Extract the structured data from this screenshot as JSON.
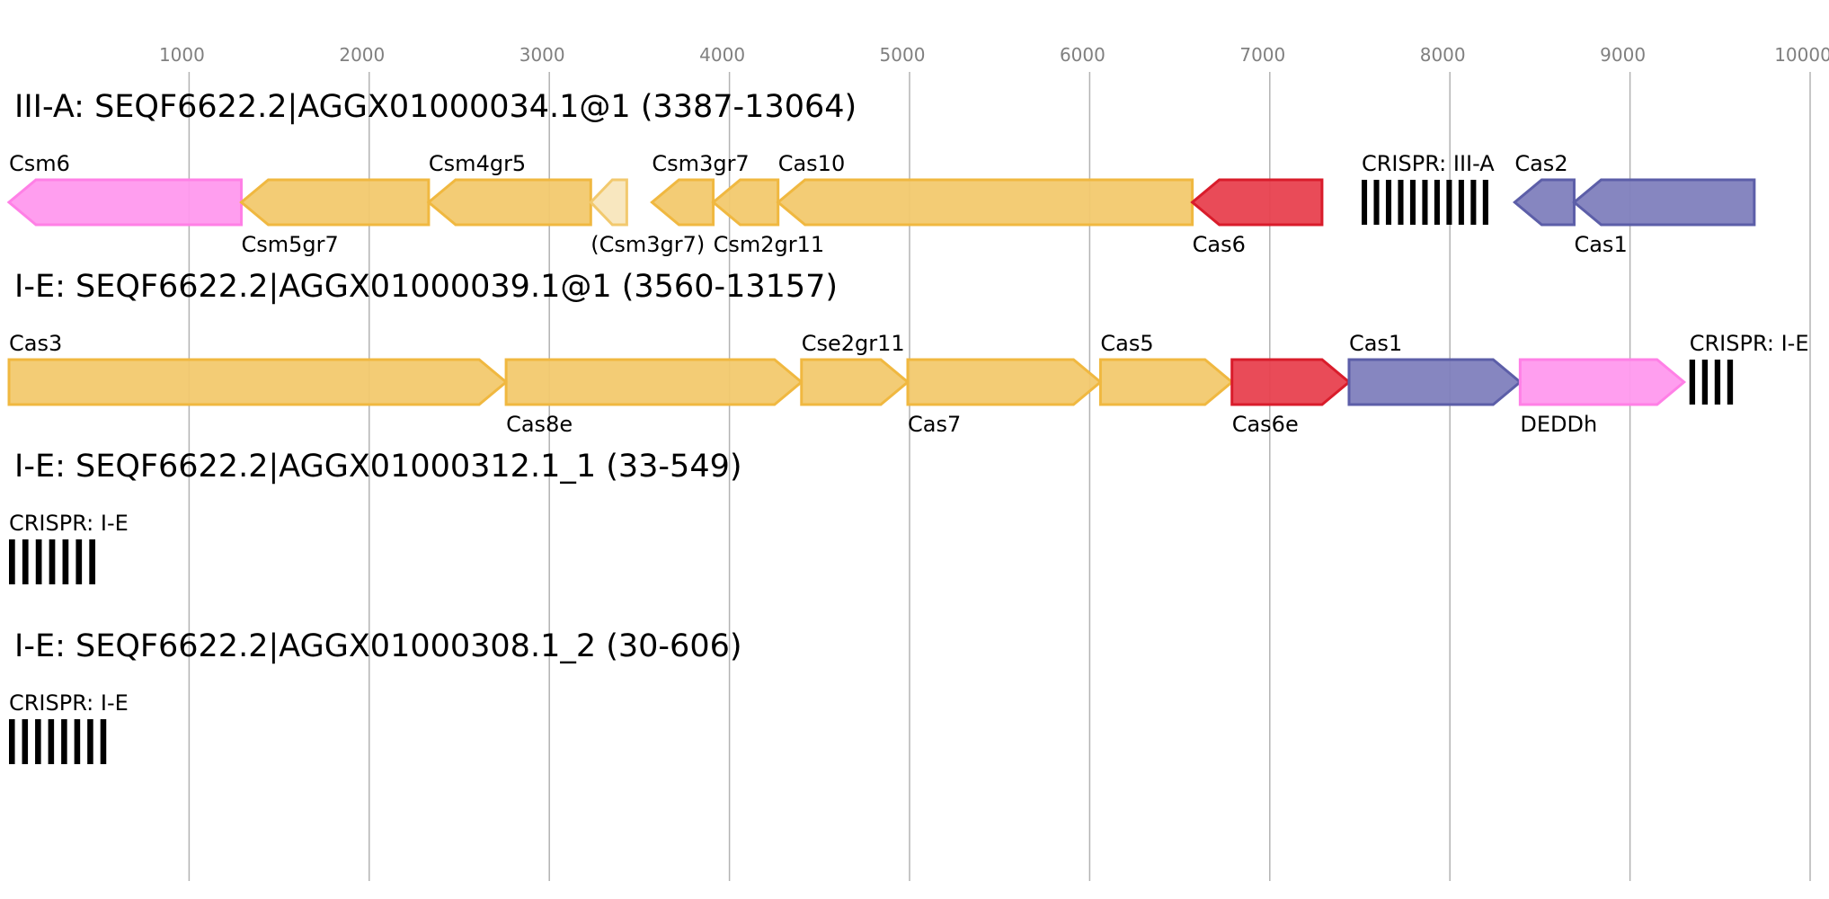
{
  "axis": {
    "ticks": [
      "1000",
      "2000",
      "3000",
      "4000",
      "5000",
      "6000",
      "7000",
      "8000",
      "9000",
      "10000"
    ],
    "tick_color": "#808080"
  },
  "colors": {
    "yellow_fill": "#f2c96e",
    "yellow_stroke": "#f0b840",
    "pale_fill": "#f8e6bc",
    "pale_stroke": "#f2c96e",
    "red_fill": "#e8414f",
    "red_stroke": "#d91c2b",
    "purple_fill": "#7f80bd",
    "purple_stroke": "#5c5ea8",
    "pink_fill": "#ff99ee",
    "pink_stroke": "#ff80e6",
    "crispr_bar": "#000000"
  },
  "loci": [
    {
      "title": "III-A: SEQF6622.2|AGGX01000034.1@1 (3387-13064)",
      "features": [
        {
          "label": "Csm6",
          "start": 0,
          "end": 1290,
          "strand": -1,
          "color": "pink",
          "label_pos": "above"
        },
        {
          "label": "Csm5gr7",
          "start": 1290,
          "end": 2330,
          "strand": -1,
          "color": "yellow",
          "label_pos": "below"
        },
        {
          "label": "Csm4gr5",
          "start": 2330,
          "end": 3230,
          "strand": -1,
          "color": "yellow",
          "label_pos": "above"
        },
        {
          "label": "(Csm3gr7)",
          "start": 3230,
          "end": 3430,
          "strand": -1,
          "color": "pale",
          "label_pos": "below"
        },
        {
          "label": "Csm3gr7",
          "start": 3570,
          "end": 3910,
          "strand": -1,
          "color": "yellow",
          "label_pos": "above"
        },
        {
          "label": "Csm2gr11",
          "start": 3910,
          "end": 4270,
          "strand": -1,
          "color": "yellow",
          "label_pos": "below"
        },
        {
          "label": "Cas10",
          "start": 4270,
          "end": 6570,
          "strand": -1,
          "color": "yellow",
          "label_pos": "above"
        },
        {
          "label": "Cas6",
          "start": 6570,
          "end": 7290,
          "strand": -1,
          "color": "red",
          "label_pos": "below"
        },
        {
          "label": "CRISPR: III-A",
          "start": 7510,
          "end": 8250,
          "type": "crispr",
          "label_pos": "above"
        },
        {
          "label": "Cas2",
          "start": 8360,
          "end": 8690,
          "strand": -1,
          "color": "purple",
          "label_pos": "above"
        },
        {
          "label": "Cas1",
          "start": 8690,
          "end": 9690,
          "strand": -1,
          "color": "purple",
          "label_pos": "below"
        }
      ]
    },
    {
      "title": "I-E: SEQF6622.2|AGGX01000039.1@1 (3560-13157)",
      "features": [
        {
          "label": "Cas3",
          "start": 0,
          "end": 2760,
          "strand": 1,
          "color": "yellow",
          "label_pos": "above"
        },
        {
          "label": "Cas8e",
          "start": 2760,
          "end": 4400,
          "strand": 1,
          "color": "yellow",
          "label_pos": "below"
        },
        {
          "label": "Cse2gr11",
          "start": 4400,
          "end": 4990,
          "strand": 1,
          "color": "yellow",
          "label_pos": "above"
        },
        {
          "label": "Cas7",
          "start": 4990,
          "end": 6060,
          "strand": 1,
          "color": "yellow",
          "label_pos": "below"
        },
        {
          "label": "Cas5",
          "start": 6060,
          "end": 6790,
          "strand": 1,
          "color": "yellow",
          "label_pos": "above"
        },
        {
          "label": "Cas6e",
          "start": 6790,
          "end": 7440,
          "strand": 1,
          "color": "red",
          "label_pos": "below"
        },
        {
          "label": "Cas1",
          "start": 7440,
          "end": 8390,
          "strand": 1,
          "color": "purple",
          "label_pos": "above"
        },
        {
          "label": "DEDDh",
          "start": 8390,
          "end": 9300,
          "strand": 1,
          "color": "pink",
          "label_pos": "below"
        },
        {
          "label": "CRISPR: I-E",
          "start": 9330,
          "end": 9610,
          "type": "crispr",
          "label_pos": "above"
        }
      ]
    },
    {
      "title": "I-E: SEQF6622.2|AGGX01000312.1_1 (33-549)",
      "features": [
        {
          "label": "CRISPR: I-E",
          "start": 0,
          "end": 520,
          "type": "crispr",
          "label_pos": "above"
        }
      ]
    },
    {
      "title": "I-E: SEQF6622.2|AGGX01000308.1_2 (30-606)",
      "features": [
        {
          "label": "CRISPR: I-E",
          "start": 0,
          "end": 580,
          "type": "crispr",
          "label_pos": "above"
        }
      ]
    }
  ]
}
